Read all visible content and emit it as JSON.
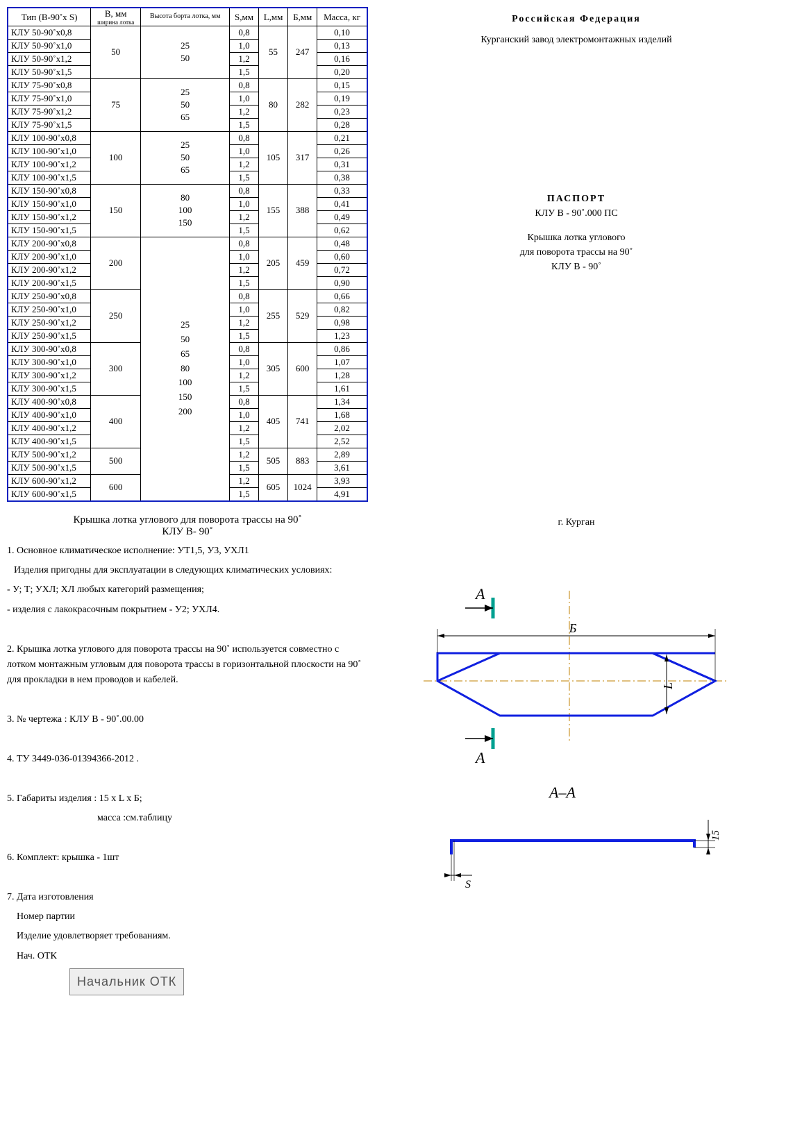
{
  "table": {
    "headers": {
      "type": "Тип (В-90˚х S)",
      "b": "В, мм",
      "b_sub": "ширина лотка",
      "h": "Высота борта лотка, мм",
      "s": "S,мм",
      "l": "L,мм",
      "bb": "Б,мм",
      "mass": "Масса, кг"
    },
    "groups": [
      {
        "b": "50",
        "h": "25\n50",
        "l": "55",
        "bb": "247",
        "rows": [
          {
            "type": "КЛУ 50-90˚х0,8",
            "s": "0,8",
            "mass": "0,10"
          },
          {
            "type": "КЛУ 50-90˚х1,0",
            "s": "1,0",
            "mass": "0,13"
          },
          {
            "type": "КЛУ 50-90˚х1,2",
            "s": "1,2",
            "mass": "0,16"
          },
          {
            "type": "КЛУ 50-90˚х1,5",
            "s": "1,5",
            "mass": "0,20"
          }
        ]
      },
      {
        "b": "75",
        "h": "25\n50\n65",
        "l": "80",
        "bb": "282",
        "rows": [
          {
            "type": "КЛУ 75-90˚х0,8",
            "s": "0,8",
            "mass": "0,15"
          },
          {
            "type": "КЛУ 75-90˚х1,0",
            "s": "1,0",
            "mass": "0,19"
          },
          {
            "type": "КЛУ 75-90˚х1,2",
            "s": "1,2",
            "mass": "0,23"
          },
          {
            "type": "КЛУ 75-90˚х1,5",
            "s": "1,5",
            "mass": "0,28"
          }
        ]
      },
      {
        "b": "100",
        "h": "25\n50\n65",
        "l": "105",
        "bb": "317",
        "rows": [
          {
            "type": "КЛУ 100-90˚х0,8",
            "s": "0,8",
            "mass": "0,21"
          },
          {
            "type": "КЛУ 100-90˚х1,0",
            "s": "1,0",
            "mass": "0,26"
          },
          {
            "type": "КЛУ 100-90˚х1,2",
            "s": "1,2",
            "mass": "0,31"
          },
          {
            "type": "КЛУ 100-90˚х1,5",
            "s": "1,5",
            "mass": "0,38"
          }
        ]
      },
      {
        "b": "150",
        "h": "80\n100\n150",
        "l": "155",
        "bb": "388",
        "rows": [
          {
            "type": "КЛУ 150-90˚х0,8",
            "s": "0,8",
            "mass": "0,33"
          },
          {
            "type": "КЛУ 150-90˚х1,0",
            "s": "1,0",
            "mass": "0,41"
          },
          {
            "type": "КЛУ 150-90˚х1,2",
            "s": "1,2",
            "mass": "0,49"
          },
          {
            "type": "КЛУ 150-90˚х1,5",
            "s": "1,5",
            "mass": "0,62"
          }
        ]
      },
      {
        "b": "200",
        "l": "205",
        "bb": "459",
        "rows": [
          {
            "type": "КЛУ 200-90˚х0,8",
            "s": "0,8",
            "mass": "0,48"
          },
          {
            "type": "КЛУ 200-90˚х1,0",
            "s": "1,0",
            "mass": "0,60"
          },
          {
            "type": "КЛУ 200-90˚х1,2",
            "s": "1,2",
            "mass": "0,72"
          },
          {
            "type": "КЛУ 200-90˚х1,5",
            "s": "1,5",
            "mass": "0,90"
          }
        ]
      },
      {
        "b": "250",
        "l": "255",
        "bb": "529",
        "rows": [
          {
            "type": "КЛУ 250-90˚х0,8",
            "s": "0,8",
            "mass": "0,66"
          },
          {
            "type": "КЛУ 250-90˚х1,0",
            "s": "1,0",
            "mass": "0,82"
          },
          {
            "type": "КЛУ 250-90˚х1,2",
            "s": "1,2",
            "mass": "0,98"
          },
          {
            "type": "КЛУ 250-90˚х1,5",
            "s": "1,5",
            "mass": "1,23"
          }
        ]
      },
      {
        "b": "300",
        "l": "305",
        "bb": "600",
        "rows": [
          {
            "type": "КЛУ 300-90˚х0,8",
            "s": "0,8",
            "mass": "0,86"
          },
          {
            "type": "КЛУ 300-90˚х1,0",
            "s": "1,0",
            "mass": "1,07"
          },
          {
            "type": "КЛУ 300-90˚х1,2",
            "s": "1,2",
            "mass": "1,28"
          },
          {
            "type": "КЛУ 300-90˚х1,5",
            "s": "1,5",
            "mass": "1,61"
          }
        ]
      },
      {
        "b": "400",
        "l": "405",
        "bb": "741",
        "rows": [
          {
            "type": "КЛУ 400-90˚х0,8",
            "s": "0,8",
            "mass": "1,34"
          },
          {
            "type": "КЛУ 400-90˚х1,0",
            "s": "1,0",
            "mass": "1,68"
          },
          {
            "type": "КЛУ 400-90˚х1,2",
            "s": "1,2",
            "mass": "2,02"
          },
          {
            "type": "КЛУ 400-90˚х1,5",
            "s": "1,5",
            "mass": "2,52"
          }
        ]
      },
      {
        "b": "500",
        "l": "505",
        "bb": "883",
        "rows": [
          {
            "type": "КЛУ 500-90˚х1,2",
            "s": "1,2",
            "mass": "2,89"
          },
          {
            "type": "КЛУ 500-90˚х1,5",
            "s": "1,5",
            "mass": "3,61"
          }
        ]
      },
      {
        "b": "600",
        "l": "605",
        "bb": "1024",
        "rows": [
          {
            "type": "КЛУ 600-90˚х1,2",
            "s": "1,2",
            "mass": "3,93"
          },
          {
            "type": "КЛУ 600-90˚х1,5",
            "s": "1,5",
            "mass": "4,91"
          }
        ]
      }
    ],
    "big_h_block": "25\n50\n65\n80\n100\n150\n200"
  },
  "desc_title1": "Крышка лотка углового для поворота трассы на 90˚",
  "desc_title2": "КЛУ В- 90˚",
  "notes": {
    "n1a": "1. Основное климатическое исполнение: УТ1,5, У3, УХЛ1",
    "n1b": "Изделия пригодны для эксплуатации в следующих климатических условиях:",
    "n1c": "- У; Т; УХЛ; ХЛ любых категорий размещения;",
    "n1d": "- изделия с лакокрасочным покрытием - У2; УХЛ4.",
    "n2": "2.   Крышка лотка углового для поворота трассы на 90˚ используется совместно с лотком монтажным угловым    для поворота трассы  в горизонтальной плоскости на 90˚ для прокладки в нем проводов и кабелей.",
    "n3": "3.   № чертежа : КЛУ В - 90˚.00.00",
    "n4": "4.  ТУ 3449-036-01394366-2012 .",
    "n5a": "5.  Габариты изделия : 15 х L x Б;",
    "n5b": "масса :см.таблицу",
    "n6": "6.  Комплект: крышка - 1шт",
    "n7a": "7. Дата изготовления",
    "n7b": "Номер партии",
    "n7c": "Изделие удовлетворяет требованиям.",
    "n7d": "Нач. ОТК"
  },
  "stamp": "Начальник ОТК",
  "header": {
    "federation": "Российская Федерация",
    "factory": "Курганский завод электромонтажных изделий"
  },
  "passport": {
    "title": "ПАСПОРТ",
    "code": "КЛУ В - 90˚.000 ПС",
    "name1": "Крышка лотка углового",
    "name2": "для поворота трассы на 90˚",
    "name3": "КЛУ В - 90˚"
  },
  "city": "г. Курган",
  "drawing": {
    "stroke": "#1020e0",
    "section_mark": "#00a090",
    "label_a": "А",
    "label_b": "Б",
    "label_l": "L",
    "section": "А–А",
    "label_s": "S",
    "label_15": "15"
  }
}
